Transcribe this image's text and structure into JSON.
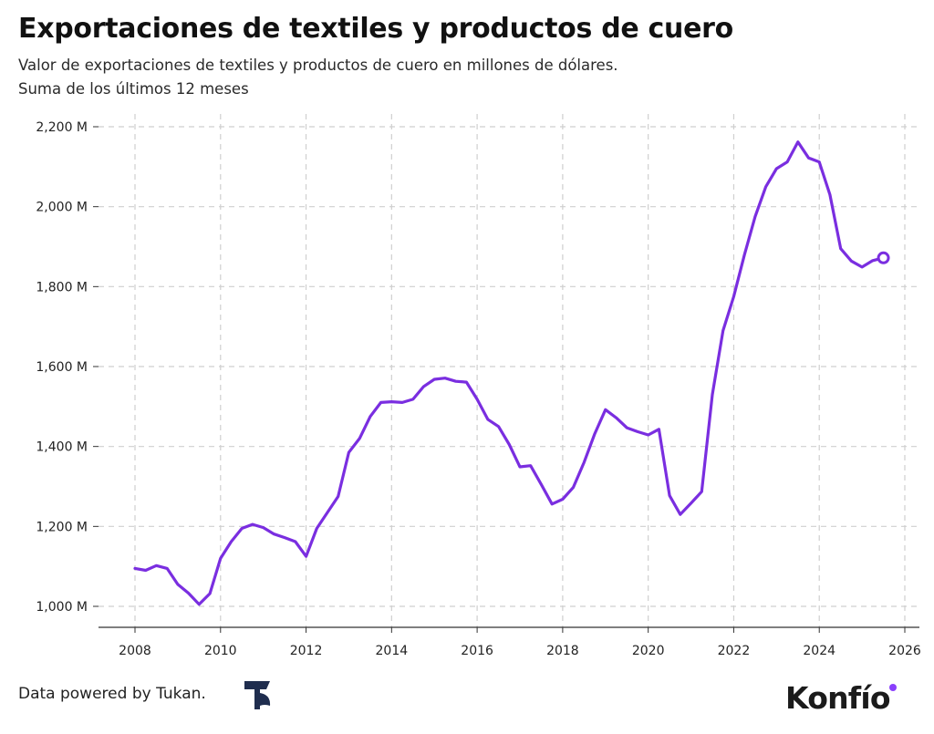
{
  "header": {
    "title": "Exportaciones de textiles y productos de cuero",
    "subtitle_line1": "Valor de exportaciones de textiles y productos de cuero en millones de dólares.",
    "subtitle_line2": "Suma de los últimos 12 meses"
  },
  "footer": {
    "credit": "Data powered by Tukan.",
    "brand": "Konfío"
  },
  "colors": {
    "line": "#7a2ee0",
    "grid": "#cfcfcf",
    "brand_dot": "#8a3ffc"
  },
  "chart_data": {
    "type": "line",
    "title": "Exportaciones de textiles y productos de cuero",
    "xlabel": "",
    "ylabel": "",
    "xlim": [
      2007.5,
      2026.4
    ],
    "ylim": [
      950,
      2230
    ],
    "x_ticks": [
      "2008",
      "2010",
      "2012",
      "2014",
      "2016",
      "2018",
      "2020",
      "2022",
      "2024",
      "2026"
    ],
    "y_ticks": [
      "1,000 M",
      "1,200 M",
      "1,400 M",
      "1,600 M",
      "1,800 M",
      "2,000 M",
      "2,200 M"
    ],
    "y_tick_values": [
      1000,
      1200,
      1400,
      1600,
      1800,
      2000,
      2200
    ],
    "grid": true,
    "last_point_marker": true,
    "series": [
      {
        "x": [
          2008.0,
          2008.25,
          2008.5,
          2008.75,
          2009.0,
          2009.25,
          2009.5,
          2009.75,
          2010.0,
          2010.25,
          2010.5,
          2010.75,
          2011.0,
          2011.25,
          2011.5,
          2011.75,
          2012.0,
          2012.25,
          2012.5,
          2012.75,
          2013.0,
          2013.25,
          2013.5,
          2013.75,
          2014.0,
          2014.25,
          2014.5,
          2014.75,
          2015.0,
          2015.25,
          2015.5,
          2015.75,
          2016.0,
          2016.25,
          2016.5,
          2016.75,
          2017.0,
          2017.25,
          2017.5,
          2017.75,
          2018.0,
          2018.25,
          2018.5,
          2018.75,
          2019.0,
          2019.25,
          2019.5,
          2019.75,
          2020.0,
          2020.25,
          2020.5,
          2020.75,
          2021.0,
          2021.25,
          2021.5,
          2021.75,
          2022.0,
          2022.25,
          2022.5,
          2022.75,
          2023.0,
          2023.25,
          2023.5,
          2023.75,
          2024.0,
          2024.25,
          2024.5,
          2024.75,
          2025.0,
          2025.25,
          2025.5
        ],
        "y": [
          1095,
          1090,
          1102,
          1095,
          1055,
          1033,
          1005,
          1032,
          1120,
          1162,
          1195,
          1205,
          1197,
          1181,
          1172,
          1162,
          1125,
          1195,
          1235,
          1275,
          1385,
          1420,
          1475,
          1510,
          1512,
          1510,
          1518,
          1550,
          1568,
          1571,
          1563,
          1561,
          1518,
          1468,
          1450,
          1405,
          1349,
          1352,
          1305,
          1256,
          1268,
          1298,
          1360,
          1432,
          1492,
          1472,
          1447,
          1437,
          1429,
          1443,
          1277,
          1230,
          1258,
          1287,
          1530,
          1690,
          1775,
          1880,
          1975,
          2050,
          2095,
          2112,
          2162,
          2122,
          2112,
          2030,
          1895,
          1864,
          1849,
          1865,
          1872
        ]
      }
    ]
  }
}
